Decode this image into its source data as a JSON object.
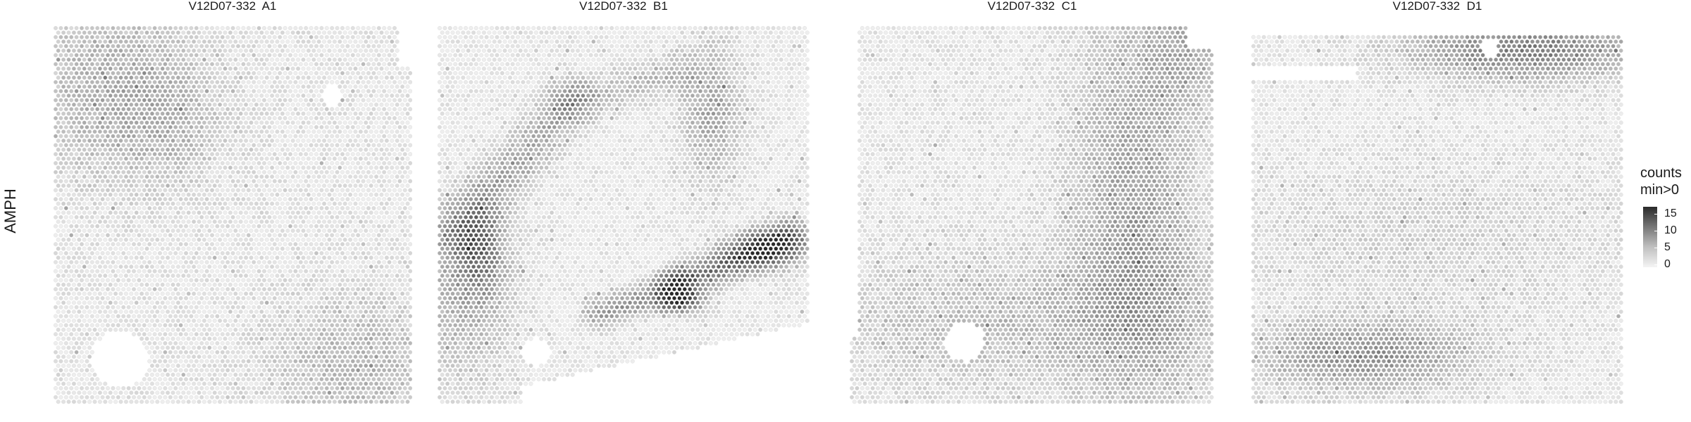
{
  "row_label": "AMPH",
  "panels": [
    {
      "title": "V12D07-332  A1"
    },
    {
      "title": "V12D07-332  B1"
    },
    {
      "title": "V12D07-332  C1"
    },
    {
      "title": "V12D07-332  D1"
    }
  ],
  "legend": {
    "title_line1": "counts",
    "title_line2": "min>0",
    "ticks": [
      "15",
      "10",
      "5",
      "0"
    ],
    "colors": {
      "low": "#f4f4f4",
      "high": "#2a2a2a"
    }
  },
  "chart_data": {
    "type": "heatmap",
    "gene": "AMPH",
    "value_label": "counts min>0",
    "scale_range": [
      0,
      18
    ],
    "legend_ticks": [
      0,
      5,
      10,
      15
    ],
    "panels": [
      {
        "name": "V12D07-332  A1",
        "max_count_approx": 8,
        "hotspots": [
          {
            "region": "upper-left",
            "level": 3
          },
          {
            "region": "lower-right",
            "level": 3
          }
        ]
      },
      {
        "name": "V12D07-332  B1",
        "max_count_approx": 18,
        "hotspots": [
          {
            "region": "diagonal band from lower-left to upper-center",
            "level": 4
          },
          {
            "region": "lower-right curved band",
            "level": 9
          },
          {
            "region": "upper-right lobe",
            "level": 4
          }
        ]
      },
      {
        "name": "V12D07-332  C1",
        "max_count_approx": 7,
        "hotspots": [
          {
            "region": "right-center column",
            "level": 3
          },
          {
            "region": "bottom band",
            "level": 3
          }
        ]
      },
      {
        "name": "V12D07-332  D1",
        "max_count_approx": 12,
        "hotspots": [
          {
            "region": "top-right band",
            "level": 6
          },
          {
            "region": "bottom-left band",
            "level": 6
          }
        ]
      }
    ]
  }
}
